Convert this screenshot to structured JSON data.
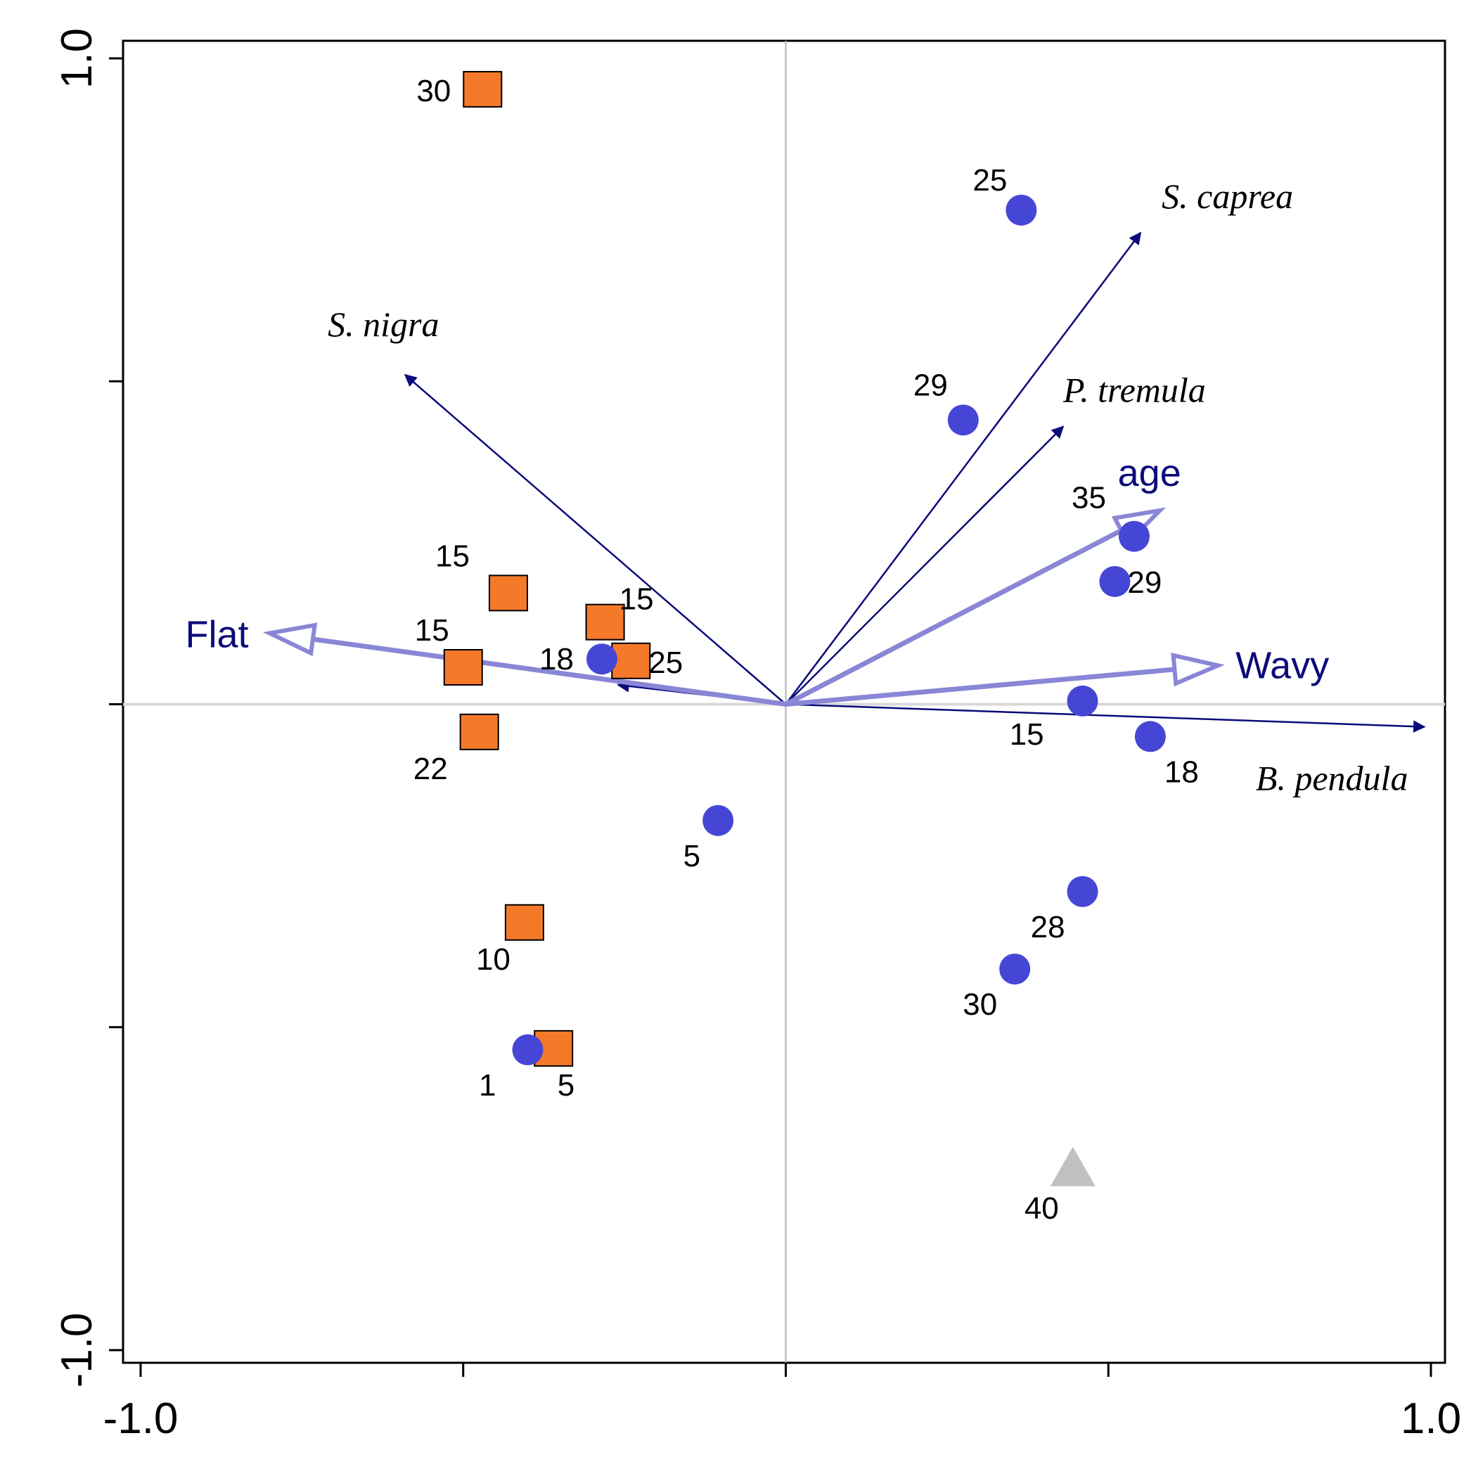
{
  "chart_data": {
    "type": "scatter",
    "subtype": "ordination-biplot",
    "title": "",
    "xlabel": "",
    "ylabel": "",
    "xlim": [
      -1.0,
      1.0
    ],
    "ylim": [
      -1.0,
      1.0
    ],
    "x_tick_labels": [
      {
        "value": -1.0,
        "label": "-1.0"
      },
      {
        "value": 1.0,
        "label": "1.0"
      }
    ],
    "y_tick_labels": [
      {
        "value": 1.0,
        "label": "1.0"
      },
      {
        "value": -1.0,
        "label": "-1.0"
      }
    ],
    "x_ticks": [
      -1.0,
      -0.5,
      0,
      0.5,
      1.0
    ],
    "y_ticks": [
      -1.0,
      -0.5,
      0,
      0.5,
      1.0
    ],
    "grid": false,
    "colors": {
      "circle": "#4646d6",
      "square_fill": "#f47a2a",
      "triangle": "#c0c0c0",
      "species_arrow": "#0a0a7a",
      "env_arrow": "#8a86d6",
      "axis_line": "#b0b0b0"
    },
    "species_arrows": [
      {
        "name": "S. caprea",
        "x": 0.55,
        "y": 0.73
      },
      {
        "name": "S. nigra",
        "x": -0.59,
        "y": 0.51
      },
      {
        "name": "P. tremula",
        "x": 0.43,
        "y": 0.43
      },
      {
        "name": "B. pendula",
        "x": 0.99,
        "y": -0.035
      },
      {
        "name": "",
        "x": -0.26,
        "y": 0.03
      }
    ],
    "env_arrows": [
      {
        "name": "age",
        "x": 0.58,
        "y": 0.3
      },
      {
        "name": "Flat",
        "x": -0.8,
        "y": 0.11
      },
      {
        "name": "Wavy",
        "x": 0.67,
        "y": 0.06
      }
    ],
    "series": [
      {
        "name": "circles",
        "marker": "circle",
        "points": [
          {
            "x": 0.365,
            "y": 0.765,
            "label": "25"
          },
          {
            "x": 0.275,
            "y": 0.44,
            "label": "29"
          },
          {
            "x": 0.54,
            "y": 0.26,
            "label": "35"
          },
          {
            "x": 0.51,
            "y": 0.19,
            "label": "29"
          },
          {
            "x": 0.46,
            "y": 0.005,
            "label": "15"
          },
          {
            "x": 0.565,
            "y": -0.05,
            "label": "18"
          },
          {
            "x": -0.285,
            "y": 0.07,
            "label": "18"
          },
          {
            "x": -0.105,
            "y": -0.18,
            "label": "5"
          },
          {
            "x": 0.46,
            "y": -0.29,
            "label": "28"
          },
          {
            "x": 0.355,
            "y": -0.41,
            "label": "30"
          },
          {
            "x": -0.4,
            "y": -0.535,
            "label": "1"
          }
        ]
      },
      {
        "name": "squares",
        "marker": "square",
        "points": [
          {
            "x": -0.47,
            "y": 0.95,
            "label": "30"
          },
          {
            "x": -0.43,
            "y": 0.17,
            "label": "15"
          },
          {
            "x": -0.28,
            "y": 0.125,
            "label": "15"
          },
          {
            "x": -0.5,
            "y": 0.055,
            "label": "15"
          },
          {
            "x": -0.24,
            "y": 0.065,
            "label": "25"
          },
          {
            "x": -0.475,
            "y": -0.045,
            "label": "22"
          },
          {
            "x": -0.405,
            "y": -0.34,
            "label": "10"
          },
          {
            "x": -0.36,
            "y": -0.535,
            "label": "5"
          }
        ]
      },
      {
        "name": "triangles",
        "marker": "triangle",
        "points": [
          {
            "x": 0.445,
            "y": -0.72,
            "label": "40"
          }
        ]
      }
    ]
  }
}
